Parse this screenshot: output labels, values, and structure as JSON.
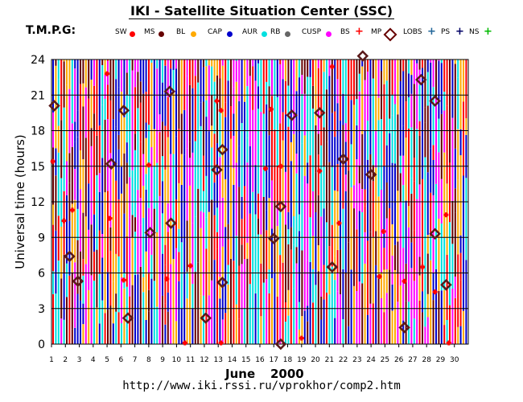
{
  "header": {
    "title": "IKI - Satellite Situation Center (SSC)",
    "satellite": "T.M.P.G:"
  },
  "legend": [
    {
      "label": "SW",
      "color": "#ff0000",
      "shape": "dot"
    },
    {
      "label": "MS",
      "color": "#660000",
      "shape": "dot"
    },
    {
      "label": "BL",
      "color": "#ffaa00",
      "shape": "dot"
    },
    {
      "label": "CAP",
      "color": "#0000cc",
      "shape": "dot"
    },
    {
      "label": "AUR",
      "color": "#00e0e0",
      "shape": "dot"
    },
    {
      "label": "RB",
      "color": "#666666",
      "shape": "dot"
    },
    {
      "label": "CUSP",
      "color": "#ff00ff",
      "shape": "dot"
    },
    {
      "label": "BS",
      "color": "#ff0000",
      "shape": "cross"
    },
    {
      "label": "MP",
      "color": "#660000",
      "shape": "diamond"
    },
    {
      "label": "LOBS",
      "color": "#226699",
      "shape": "cross"
    },
    {
      "label": "PS",
      "color": "#000066",
      "shape": "cross"
    },
    {
      "label": "NS",
      "color": "#00bb00",
      "shape": "cross"
    }
  ],
  "footer": {
    "month": "June",
    "year": "2000",
    "url": "http://www.iki.rssi.ru/vprokhor/comp2.htm"
  },
  "chart_data": {
    "type": "scatter",
    "ylabel": "Universal time (hours)",
    "xlim": [
      1,
      31
    ],
    "ylim": [
      0,
      24
    ],
    "x_ticks": [
      1,
      2,
      3,
      4,
      5,
      6,
      7,
      8,
      9,
      10,
      11,
      12,
      13,
      14,
      15,
      16,
      17,
      18,
      19,
      20,
      21,
      22,
      23,
      24,
      25,
      26,
      27,
      28,
      29,
      30
    ],
    "y_ticks": [
      0,
      3,
      6,
      9,
      12,
      15,
      18,
      21,
      24
    ],
    "grid": true,
    "stripe_palette": [
      "#0000cc",
      "#00e0e0",
      "#660000",
      "#ff0000",
      "#ff00ff",
      "#ffaa00"
    ],
    "bow_shock_crossings": [
      {
        "day": 1.1,
        "hour": 15.4
      },
      {
        "day": 1.9,
        "hour": 10.4
      },
      {
        "day": 2.5,
        "hour": 11.3
      },
      {
        "day": 5.0,
        "hour": 22.8
      },
      {
        "day": 5.2,
        "hour": 10.6
      },
      {
        "day": 6.2,
        "hour": 5.4
      },
      {
        "day": 8.0,
        "hour": 15.1
      },
      {
        "day": 9.3,
        "hour": 5.5
      },
      {
        "day": 10.6,
        "hour": 0.1
      },
      {
        "day": 11.0,
        "hour": 6.6
      },
      {
        "day": 12.9,
        "hour": 20.5
      },
      {
        "day": 13.2,
        "hour": 19.7
      },
      {
        "day": 13.2,
        "hour": 0.1
      },
      {
        "day": 16.4,
        "hour": 14.8
      },
      {
        "day": 16.8,
        "hour": 19.8
      },
      {
        "day": 17.5,
        "hour": 15.0
      },
      {
        "day": 19.0,
        "hour": 0.5
      },
      {
        "day": 20.3,
        "hour": 14.6
      },
      {
        "day": 21.2,
        "hour": 23.4
      },
      {
        "day": 21.7,
        "hour": 10.2
      },
      {
        "day": 24.6,
        "hour": 5.7
      },
      {
        "day": 24.9,
        "hour": 9.5
      },
      {
        "day": 26.4,
        "hour": 5.3
      },
      {
        "day": 27.7,
        "hour": 6.5
      },
      {
        "day": 28.6,
        "hour": 4.4
      },
      {
        "day": 29.4,
        "hour": 10.9
      },
      {
        "day": 29.6,
        "hour": 0.1
      }
    ],
    "magnetopause_crossings": [
      {
        "day": 1.2,
        "hour": 20.1
      },
      {
        "day": 2.3,
        "hour": 7.4
      },
      {
        "day": 2.9,
        "hour": 5.3
      },
      {
        "day": 5.3,
        "hour": 15.2
      },
      {
        "day": 6.2,
        "hour": 19.7
      },
      {
        "day": 6.5,
        "hour": 2.2
      },
      {
        "day": 8.1,
        "hour": 9.4
      },
      {
        "day": 9.5,
        "hour": 21.3
      },
      {
        "day": 9.6,
        "hour": 10.2
      },
      {
        "day": 12.1,
        "hour": 2.2
      },
      {
        "day": 12.9,
        "hour": 14.7
      },
      {
        "day": 13.3,
        "hour": 16.4
      },
      {
        "day": 13.3,
        "hour": 5.2
      },
      {
        "day": 17.0,
        "hour": 8.9
      },
      {
        "day": 17.5,
        "hour": 11.6
      },
      {
        "day": 17.5,
        "hour": 0.0
      },
      {
        "day": 18.3,
        "hour": 19.3
      },
      {
        "day": 20.3,
        "hour": 19.5
      },
      {
        "day": 21.2,
        "hour": 6.5
      },
      {
        "day": 22.0,
        "hour": 15.6
      },
      {
        "day": 23.4,
        "hour": 24.3
      },
      {
        "day": 24.0,
        "hour": 14.3
      },
      {
        "day": 26.4,
        "hour": 1.4
      },
      {
        "day": 27.6,
        "hour": 22.3
      },
      {
        "day": 28.6,
        "hour": 20.5
      },
      {
        "day": 28.6,
        "hour": 9.3
      },
      {
        "day": 29.4,
        "hour": 5.0
      }
    ]
  }
}
